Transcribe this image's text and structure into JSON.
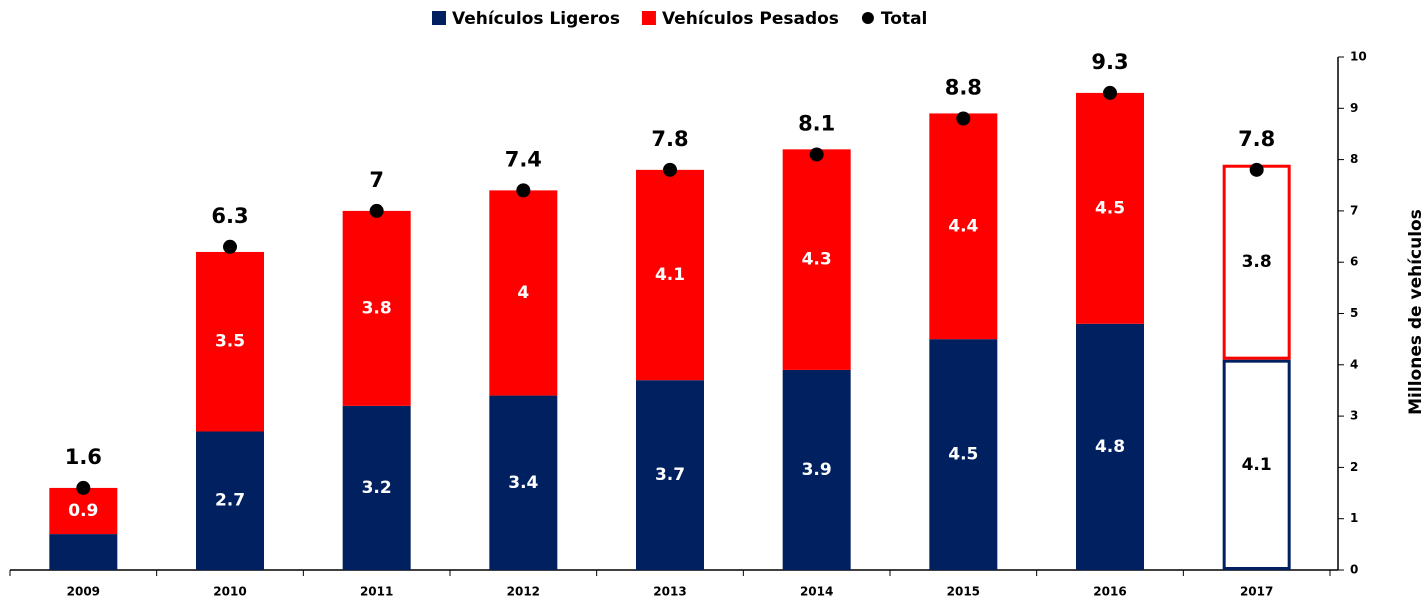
{
  "chart_data": {
    "type": "stacked_bar_with_total",
    "y_axis_label": "Millones de vehículos",
    "categories": [
      "2009",
      "2010",
      "2011",
      "2012",
      "2013",
      "2014",
      "2015",
      "2016",
      "2017"
    ],
    "series": [
      {
        "name": "Vehículos Ligeros",
        "color": "#002060",
        "values": [
          0.7,
          2.7,
          3.2,
          3.4,
          3.7,
          3.9,
          4.5,
          4.8,
          4.1
        ],
        "value_labels": [
          null,
          "2.7",
          "3.2",
          "3.4",
          "3.7",
          "3.9",
          "4.5",
          "4.8",
          "4.1"
        ],
        "styles": [
          "solid",
          "solid",
          "solid",
          "solid",
          "solid",
          "solid",
          "solid",
          "solid",
          "outline"
        ]
      },
      {
        "name": "Vehículos Pesados",
        "color": "#ff0000",
        "values": [
          0.9,
          3.5,
          3.8,
          4.0,
          4.1,
          4.3,
          4.4,
          4.5,
          3.8
        ],
        "styles": [
          "solid",
          "solid",
          "solid",
          "solid",
          "solid",
          "solid",
          "solid",
          "solid",
          "outline"
        ]
      },
      {
        "name": "Total",
        "color": "#000000",
        "marker": "dot",
        "values": [
          1.6,
          6.3,
          7.0,
          7.4,
          7.8,
          8.1,
          8.8,
          9.3,
          7.8
        ]
      }
    ],
    "ylim": [
      0,
      10
    ],
    "yticks": [
      0,
      1,
      2,
      3,
      4,
      5,
      6,
      7,
      8,
      9,
      10
    ],
    "y_axis_side": "right",
    "grid": false
  }
}
